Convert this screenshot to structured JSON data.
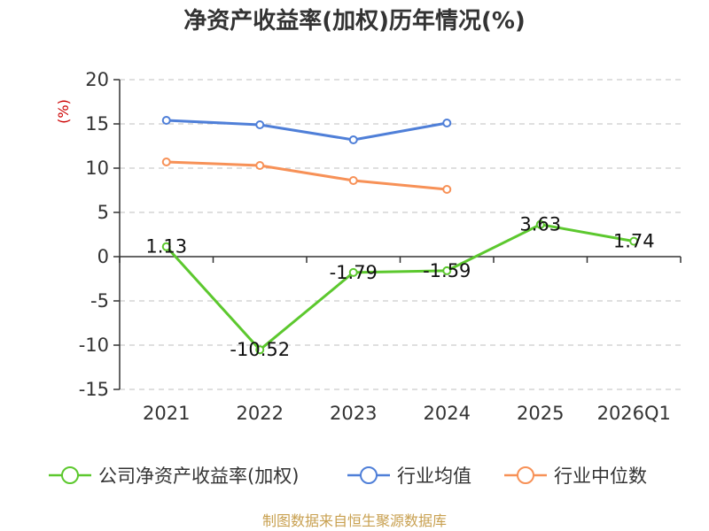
{
  "chart_data": {
    "type": "line",
    "title": "净资产收益率(加权)历年情况(%)",
    "ylabel": "(%)",
    "xlabel": "",
    "categories": [
      "2021",
      "2022",
      "2023",
      "2024",
      "2025",
      "2026Q1"
    ],
    "ylim": [
      -15,
      20
    ],
    "yticks": [
      20,
      15,
      10,
      5,
      0,
      -5,
      -10,
      -15
    ],
    "ytick_labels": [
      "20",
      "15",
      "10",
      "5",
      "0",
      "-5",
      "-10",
      "-15"
    ],
    "grid": true,
    "legend_position": "bottom",
    "series": [
      {
        "name": "公司净资产收益率(加权)",
        "color": "#5cc82e",
        "values": [
          1.13,
          -10.52,
          -1.79,
          -1.59,
          3.63,
          1.74
        ],
        "labels": [
          "1.13",
          "-10.52",
          "-1.79",
          "-1.59",
          "3.63",
          "1.74"
        ]
      },
      {
        "name": "行业均值",
        "color": "#4f7fd8",
        "values": [
          15.4,
          14.9,
          13.2,
          15.1,
          null,
          null
        ]
      },
      {
        "name": "行业中位数",
        "color": "#f79157",
        "values": [
          10.7,
          10.3,
          8.6,
          7.6,
          null,
          null
        ]
      }
    ]
  },
  "footer": {
    "source": "制图数据来自恒生聚源数据库"
  }
}
